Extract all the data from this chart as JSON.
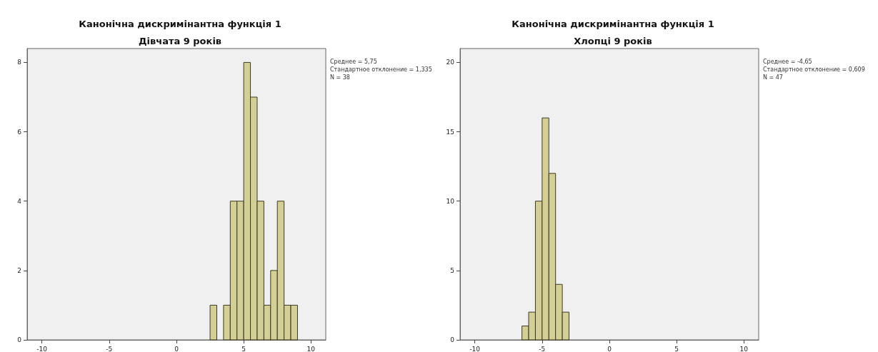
{
  "chart_data": [
    {
      "type": "histogram",
      "title": "Канонічна дискримінантна функція 1",
      "subtitle": "Дівчата 9 років",
      "bins": [
        2.5,
        3,
        3.5,
        4,
        4.5,
        5,
        5.5,
        6,
        6.5,
        7,
        7.5,
        8,
        8.5,
        9
      ],
      "values": [
        1,
        0,
        1,
        4,
        4,
        8,
        7,
        4,
        1,
        2,
        4,
        1,
        1
      ],
      "color": "#d4cf96",
      "xlim": [
        -11.1,
        11.1
      ],
      "xticks": [
        -10,
        -5,
        0,
        5,
        10
      ],
      "ylim": [
        0,
        8.4
      ],
      "yticks": [
        0,
        2,
        4,
        6,
        8
      ],
      "grid": false,
      "annotations": [
        "Среднее = 5,75",
        "Стандартное отклонение = 1,335",
        "N = 38"
      ]
    },
    {
      "type": "histogram",
      "title": "Канонічна дискримінантна функція 1",
      "subtitle": "Хлопці 9 років",
      "bins": [
        -6.5,
        -6,
        -5.5,
        -5,
        -4.5,
        -4,
        -3.5,
        -3
      ],
      "values": [
        1,
        2,
        10,
        16,
        12,
        4,
        2
      ],
      "color": "#d4cf96",
      "xlim": [
        -11.1,
        11.1
      ],
      "xticks": [
        -10,
        -5,
        0,
        5,
        10
      ],
      "ylim": [
        0,
        21
      ],
      "yticks": [
        0,
        5,
        10,
        15,
        20
      ],
      "grid": false,
      "annotations": [
        "Среднее = -4,65",
        "Стандартное отклонение = 0,609",
        "N = 47"
      ]
    }
  ]
}
